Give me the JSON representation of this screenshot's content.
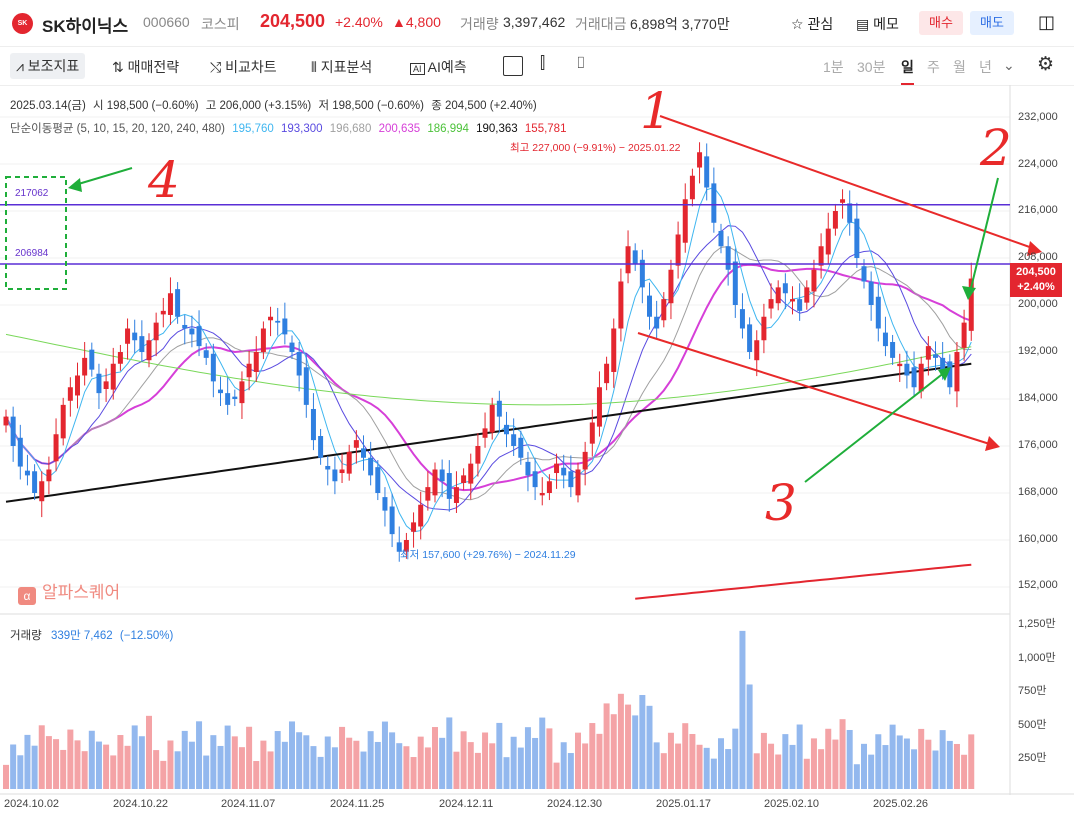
{
  "header": {
    "stock_name": "SK하이닉스",
    "code": "000660",
    "market": "코스피",
    "price": "204,500",
    "change_pct": "+2.40%",
    "change_amt": "▲4,800",
    "volume_label": "거래량",
    "volume": "3,397,462",
    "amount_label": "거래대금",
    "amount": "6,898억 3,770만",
    "watch": "관심",
    "memo": "메모",
    "buy": "매수",
    "sell": "매도"
  },
  "toolbar": {
    "indicators": "보조지표",
    "strategy": "매매전략",
    "compare": "비교차트",
    "analysis": "지표분석",
    "ai": "AI예측",
    "periods": [
      "1분",
      "30분",
      "일",
      "주",
      "월",
      "년"
    ],
    "active_period": "일"
  },
  "info": {
    "line1": {
      "date": "2025.03.14(금)",
      "open": "시 198,500 (−0.60%)",
      "high": "고 206,000 (+3.15%)",
      "low": "저 198,500 (−0.60%)",
      "close": "종 204,500 (+2.40%)"
    },
    "ma_label": "단순이동평균 (5, 10, 15, 20, 120, 240, 480)",
    "ma_values": [
      "195,760",
      "193,300",
      "196,680",
      "200,635",
      "186,994",
      "190,363",
      "155,781"
    ]
  },
  "colors": {
    "up": "#e3262f",
    "down": "#2f7fe0",
    "ma5": "#3fb6f0",
    "ma10": "#5a4be0",
    "ma15": "#a0a0a0",
    "ma20": "#d63fd8",
    "ma120": "#7ad85a",
    "ma240": "#111111",
    "ma480": "#e3262f",
    "hline": "#5a2fd6",
    "annot_red": "#e82a2a",
    "annot_green": "#1fae3a"
  },
  "annotations": {
    "high_note": "최고 227,000 (−9.91%) − 2025.01.22",
    "low_note": "최저 157,600 (+29.76%) − 2024.11.29",
    "hline_upper": "217062",
    "hline_lower": "206984",
    "labels": [
      "1",
      "2",
      "3",
      "4"
    ],
    "watermark": "알파스퀘어"
  },
  "price_tag": {
    "price": "204,500",
    "change": "+2.40%"
  },
  "volume_panel": {
    "label": "거래량",
    "value": "339만 7,462",
    "change": "(−12.50%)"
  },
  "chart_data": {
    "type": "candlestick",
    "y_axis_ticks": [
      "232,000",
      "224,000",
      "216,000",
      "208,000",
      "200,000",
      "192,000",
      "184,000",
      "176,000",
      "168,000",
      "160,000",
      "152,000"
    ],
    "ylim": [
      150000,
      234000
    ],
    "volume_axis_ticks": [
      "1,250만",
      "1,000만",
      "750만",
      "500만",
      "250만"
    ],
    "x_labels": [
      "2024.10.02",
      "2024.10.22",
      "2024.11.07",
      "2024.11.25",
      "2024.12.11",
      "2024.12.30",
      "2025.01.17",
      "2025.02.10",
      "2025.02.26"
    ],
    "closes": [
      181000,
      176000,
      172500,
      171000,
      168000,
      170000,
      172000,
      178000,
      183000,
      186000,
      188000,
      191000,
      189000,
      185000,
      187000,
      190000,
      192000,
      196000,
      194000,
      192000,
      194000,
      197000,
      199000,
      202000,
      198000,
      196000,
      195000,
      193000,
      191000,
      187000,
      185000,
      183000,
      184000,
      187000,
      190000,
      192000,
      196000,
      198000,
      197000,
      195000,
      192000,
      188000,
      183000,
      177000,
      174000,
      172000,
      170000,
      172000,
      175000,
      177000,
      174000,
      171000,
      168000,
      165000,
      161000,
      158000,
      160000,
      163000,
      166000,
      169000,
      172000,
      170000,
      167000,
      169000,
      171000,
      173000,
      176000,
      179000,
      183000,
      181000,
      178000,
      176000,
      174000,
      171000,
      169000,
      168000,
      170000,
      173000,
      171000,
      169000,
      172000,
      175000,
      180000,
      186000,
      190000,
      196000,
      204000,
      210000,
      207000,
      203000,
      198000,
      196000,
      201000,
      206000,
      212000,
      218000,
      222000,
      226000,
      220000,
      214000,
      210000,
      206000,
      200000,
      196000,
      192000,
      194000,
      198000,
      201000,
      203000,
      202000,
      201000,
      199000,
      203000,
      206000,
      210000,
      213000,
      216000,
      218000,
      214000,
      208000,
      204000,
      200000,
      196000,
      193000,
      191000,
      190000,
      188000,
      186000,
      190000,
      193000,
      191000,
      189000,
      186000,
      192000,
      197000,
      204500
    ],
    "ma_periods": [
      5,
      10,
      15,
      20,
      120,
      240,
      480
    ]
  }
}
